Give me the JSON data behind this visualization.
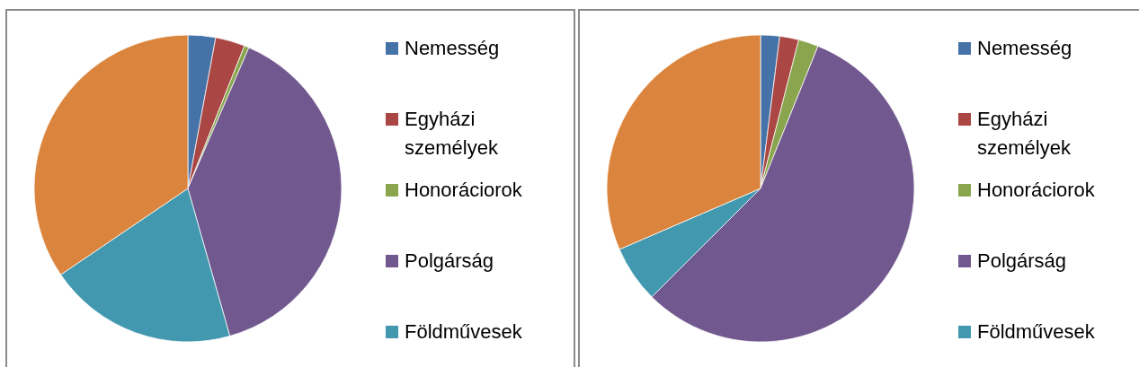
{
  "chart_data": [
    {
      "type": "pie",
      "categories": [
        "Nemesség",
        "Egyházi személyek",
        "Honoráciorok",
        "Polgárság",
        "Földművesek",
        null
      ],
      "values": [
        2.9,
        3.1,
        0.5,
        39.1,
        19.9,
        34.5
      ],
      "colors": [
        "#4572a7",
        "#aa4643",
        "#89a54e",
        "#71588f",
        "#4198af",
        "#db843d"
      ],
      "legend": "right"
    },
    {
      "type": "pie",
      "categories": [
        "Nemesség",
        "Egyházi személyek",
        "Honoráciorok",
        "Polgárság",
        "Földművesek",
        null
      ],
      "values": [
        2.0,
        2.0,
        2.1,
        56.4,
        6.0,
        31.5
      ],
      "colors": [
        "#4572a7",
        "#aa4643",
        "#89a54e",
        "#71588f",
        "#4198af",
        "#db843d"
      ],
      "legend": "right"
    }
  ]
}
